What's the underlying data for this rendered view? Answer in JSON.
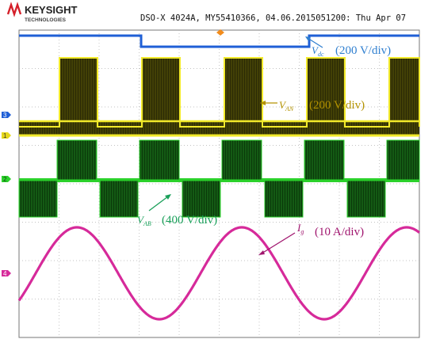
{
  "header": {
    "brand": "KEYSIGHT",
    "brand_sub": "TECHNOLOGIES",
    "instrument_info": "DSO-X 4024A, MY55410366, 04.06.2015051200: Thu Apr 07"
  },
  "channel_markers": {
    "ch1": "1",
    "ch2": "2",
    "ch3": "3",
    "ch4": "4"
  },
  "annotations": {
    "vdc": {
      "symbol": "V",
      "subscript": "dc",
      "scale": "(200 V/div)",
      "color": "#2f7fd0"
    },
    "van": {
      "symbol": "V",
      "subscript": "AN",
      "scale": "(200 V/div)",
      "color": "#b39200"
    },
    "vab": {
      "symbol": "V",
      "subscript": "AB",
      "scale": "(400 V/div)",
      "color": "#1aa05a"
    },
    "ig": {
      "symbol": "I",
      "subscript": "g",
      "scale": "(10 A/div)",
      "color": "#a0156e"
    }
  },
  "colors": {
    "ch1": "#f2ea2a",
    "ch2": "#2bd12b",
    "ch3": "#1f5fd6",
    "ch4": "#d62a9a",
    "grid": "#9a9a9a",
    "background": "#ffffff"
  }
}
